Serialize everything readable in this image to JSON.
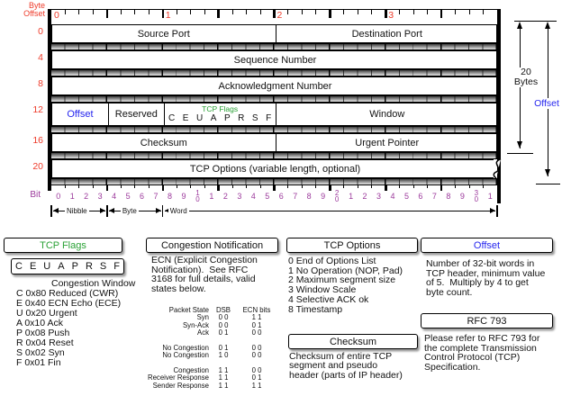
{
  "colors": {
    "red": "#ee3b2a",
    "purple": "#9c3a9c",
    "blue": "#2525ee",
    "green": "#2aa135"
  },
  "diagram": {
    "byte_offset_label": "Byte\nOffset",
    "top_scale_numbers": [
      "0",
      "1",
      "2",
      "3"
    ],
    "row_offsets": [
      "0",
      "4",
      "8",
      "12",
      "16",
      "20"
    ],
    "rows": [
      {
        "offset": "0",
        "cells": [
          {
            "label": "Source Port",
            "bits": 16
          },
          {
            "label": "Destination Port",
            "bits": 16
          }
        ]
      },
      {
        "offset": "4",
        "cells": [
          {
            "label": "Sequence Number",
            "bits": 32
          }
        ]
      },
      {
        "offset": "8",
        "cells": [
          {
            "label": "Acknowledgment Number",
            "bits": 32
          }
        ]
      },
      {
        "offset": "12",
        "cells": [
          {
            "label": "Offset",
            "bits": 4,
            "color": "blue"
          },
          {
            "label": "Reserved",
            "bits": 4
          },
          {
            "label": "TCP Flags",
            "sublabel": "C E U A P R S F",
            "bits": 8,
            "color": "green"
          },
          {
            "label": "Window",
            "bits": 16
          }
        ]
      },
      {
        "offset": "16",
        "cells": [
          {
            "label": "Checksum",
            "bits": 16
          },
          {
            "label": "Urgent Pointer",
            "bits": 16
          }
        ]
      },
      {
        "offset": "20",
        "cells": [
          {
            "label": "TCP Options (variable length, optional)",
            "bits": 32,
            "torn": true
          }
        ]
      }
    ],
    "bit_label": "Bit",
    "bit_numbers": [
      "0",
      "1",
      "2",
      "3",
      "4",
      "5",
      "6",
      "7",
      "8",
      "9",
      "10",
      "1",
      "2",
      "3",
      "4",
      "5",
      "6",
      "7",
      "8",
      "9",
      "20",
      "1",
      "2",
      "3",
      "4",
      "5",
      "6",
      "7",
      "8",
      "9",
      "30",
      "1"
    ],
    "unit_labels": [
      "Nibble",
      "Byte",
      "Word"
    ],
    "annotations": {
      "bytes_label": "20\nBytes",
      "offset_label": "Offset"
    }
  },
  "legend": {
    "tcp_flags": {
      "title": "TCP Flags",
      "flag_letters": [
        "C",
        "E",
        "U",
        "A",
        "P",
        "R",
        "S",
        "F"
      ],
      "lines": [
        "Congestion Window",
        "C 0x80 Reduced (CWR)",
        "E 0x40 ECN Echo (ECE)",
        "U 0x20 Urgent",
        "A 0x10 Ack",
        "P 0x08 Push",
        "R 0x04 Reset",
        "S 0x02 Syn",
        "F 0x01 Fin"
      ]
    },
    "congestion_notification": {
      "title": "Congestion Notification",
      "lines": [
        "ECN (Explicit Congestion",
        "Notification).  See RFC",
        "3168 for full details, valid",
        "states below."
      ],
      "table": {
        "headers": [
          "Packet State",
          "DSB",
          "ECN bits"
        ],
        "groups": [
          [
            [
              "Syn",
              "0 0",
              "1 1"
            ],
            [
              "Syn-Ack",
              "0 0",
              "0 1"
            ],
            [
              "Ack",
              "0 1",
              "0 0"
            ]
          ],
          [
            [
              "No Congestion",
              "0 1",
              "0 0"
            ],
            [
              "No Congestion",
              "1 0",
              "0 0"
            ]
          ],
          [
            [
              "Congestion",
              "1 1",
              "0 0"
            ],
            [
              "Receiver Response",
              "1 1",
              "0 1"
            ],
            [
              "Sender Response",
              "1 1",
              "1 1"
            ]
          ]
        ]
      }
    },
    "tcp_options": {
      "title": "TCP Options",
      "lines": [
        "0 End of Options List",
        "1 No Operation (NOP, Pad)",
        "2 Maximum segment size",
        "3 Window Scale",
        "4 Selective ACK ok",
        "8 Timestamp"
      ]
    },
    "offset": {
      "title": "Offset",
      "lines": [
        "Number of 32-bit words in",
        "TCP header, minimum value",
        "of 5.  Multiply by 4 to get",
        "byte count."
      ]
    },
    "checksum": {
      "title": "Checksum",
      "lines": [
        "Checksum of entire TCP",
        "segment and pseudo",
        "header (parts of IP header)"
      ]
    },
    "rfc": {
      "title": "RFC 793",
      "lines": [
        "Please refer to RFC 793 for",
        "the complete Transmission",
        "Control Protocol (TCP)",
        "Specification."
      ]
    }
  }
}
